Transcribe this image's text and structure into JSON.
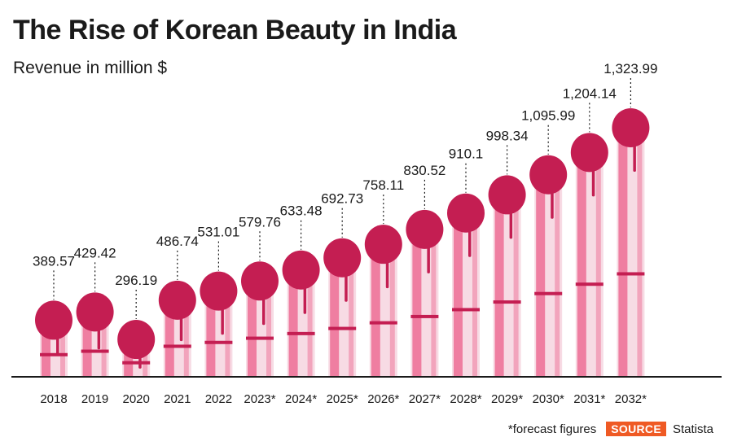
{
  "header": {
    "title": "The Rise of Korean Beauty in India",
    "subtitle": "Revenue in million $"
  },
  "footer": {
    "footnote": "*forecast figures",
    "source_label": "SOURCE",
    "source_name": "Statista"
  },
  "colors": {
    "brush_head": "#c41e52",
    "handle_light": "#f7dbe4",
    "handle_mid": "#ef7ea1",
    "accent_line": "#c41e52",
    "axis": "#1a1a1a",
    "source_badge": "#ef5a24"
  },
  "chart_data": {
    "type": "bar",
    "title": "The Rise of Korean Beauty in India",
    "ylabel": "Revenue in million $",
    "categories": [
      "2018",
      "2019",
      "2020",
      "2021",
      "2022",
      "2023*",
      "2024*",
      "2025*",
      "2026*",
      "2027*",
      "2028*",
      "2029*",
      "2030*",
      "2031*",
      "2032*"
    ],
    "values": [
      389.57,
      429.42,
      296.19,
      486.74,
      531.01,
      579.76,
      633.48,
      692.73,
      758.11,
      830.52,
      910.1,
      998.34,
      1095.99,
      1204.14,
      1323.99
    ],
    "value_labels": [
      "389.57",
      "429.42",
      "296.19",
      "486.74",
      "531.01",
      "579.76",
      "633.48",
      "692.73",
      "758.11",
      "830.52",
      "910.1",
      "998.34",
      "1,095.99",
      "1,204.14",
      "1,323.99"
    ],
    "ylim": [
      0,
      1323.99
    ],
    "grid": false,
    "legend": "none",
    "mark_style": "makeup-brush"
  }
}
